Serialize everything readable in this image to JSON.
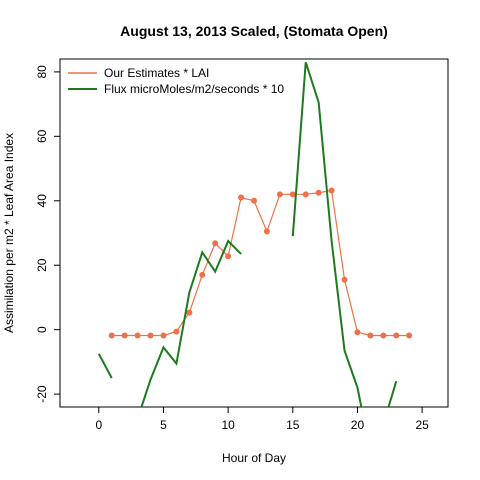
{
  "chart_data": {
    "type": "line",
    "title": "August 13, 2013 Scaled, (Stomata Open)",
    "xlabel": "Hour of Day",
    "ylabel": "Assimilation per m2 * Leaf Area Index",
    "xlim": [
      -3,
      27
    ],
    "ylim": [
      -24,
      84
    ],
    "x_ticks": [
      0,
      5,
      10,
      15,
      20,
      25
    ],
    "y_ticks": [
      -20,
      0,
      20,
      40,
      60,
      80
    ],
    "grid": false,
    "legend_position": "top-left",
    "series": [
      {
        "name": "Our Estimates * LAI",
        "color": "#f07048",
        "style": "line-points",
        "points": [
          [
            1,
            -1.8
          ],
          [
            2,
            -1.8
          ],
          [
            3,
            -1.8
          ],
          [
            4,
            -1.8
          ],
          [
            5,
            -1.8
          ],
          [
            6,
            -0.6
          ],
          [
            7,
            5.3
          ],
          [
            8,
            17
          ],
          [
            9,
            26.8
          ],
          [
            10,
            22.8
          ],
          [
            11,
            41
          ],
          [
            12,
            40
          ],
          [
            13,
            30.5
          ],
          [
            14,
            42
          ],
          [
            15,
            42
          ],
          [
            16,
            42
          ],
          [
            17,
            42.5
          ],
          [
            18,
            43.2
          ],
          [
            19,
            15.5
          ],
          [
            20,
            -0.8
          ],
          [
            21,
            -1.8
          ],
          [
            22,
            -1.8
          ],
          [
            23,
            -1.8
          ],
          [
            24,
            -1.8
          ]
        ]
      },
      {
        "name": "Flux microMoles/m2/seconds * 10",
        "color": "#1e7a1e",
        "style": "line",
        "segments": [
          [
            [
              0,
              -7.5
            ],
            [
              1,
              -15
            ]
          ],
          [
            [
              3.3,
              -24
            ],
            [
              4,
              -15.5
            ],
            [
              5,
              -5.5
            ],
            [
              6,
              -10.5
            ],
            [
              7,
              11.5
            ],
            [
              8,
              24
            ],
            [
              9,
              18
            ],
            [
              10,
              27.5
            ],
            [
              11,
              23.5
            ]
          ],
          [
            [
              15,
              29
            ],
            [
              16,
              83
            ],
            [
              17,
              70.5
            ],
            [
              18,
              27.5
            ],
            [
              19,
              -6.5
            ],
            [
              20,
              -18
            ],
            [
              20.3,
              -24
            ]
          ],
          [
            [
              22.4,
              -24
            ],
            [
              23,
              -16
            ]
          ]
        ]
      }
    ]
  }
}
